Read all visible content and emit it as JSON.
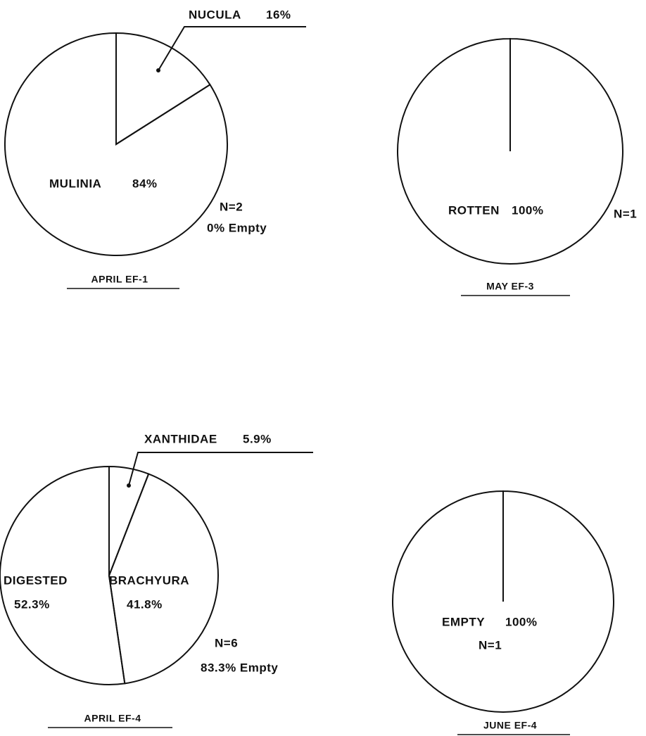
{
  "chart_data": [
    {
      "type": "pie",
      "title": "APRIL EF-1",
      "categories": [
        "NUCULA",
        "MULINIA"
      ],
      "values": [
        16,
        84
      ],
      "value_labels": [
        "16%",
        "84%"
      ],
      "annotations": [
        "N=2",
        "0% Empty"
      ]
    },
    {
      "type": "pie",
      "title": "MAY EF-3",
      "categories": [
        "ROTTEN"
      ],
      "values": [
        100
      ],
      "value_labels": [
        "100%"
      ],
      "annotations": [
        "N=1"
      ]
    },
    {
      "type": "pie",
      "title": "APRIL EF-4",
      "categories": [
        "XANTHIDAE",
        "BRACHYURA",
        "DIGESTED"
      ],
      "values": [
        5.9,
        41.8,
        52.3
      ],
      "value_labels": [
        "5.9%",
        "41.8%",
        "52.3%"
      ],
      "annotations": [
        "N=6",
        "83.3% Empty"
      ]
    },
    {
      "type": "pie",
      "title": "JUNE EF-4",
      "categories": [
        "EMPTY"
      ],
      "values": [
        100
      ],
      "value_labels": [
        "100%"
      ],
      "annotations": [
        "N=1"
      ]
    }
  ]
}
